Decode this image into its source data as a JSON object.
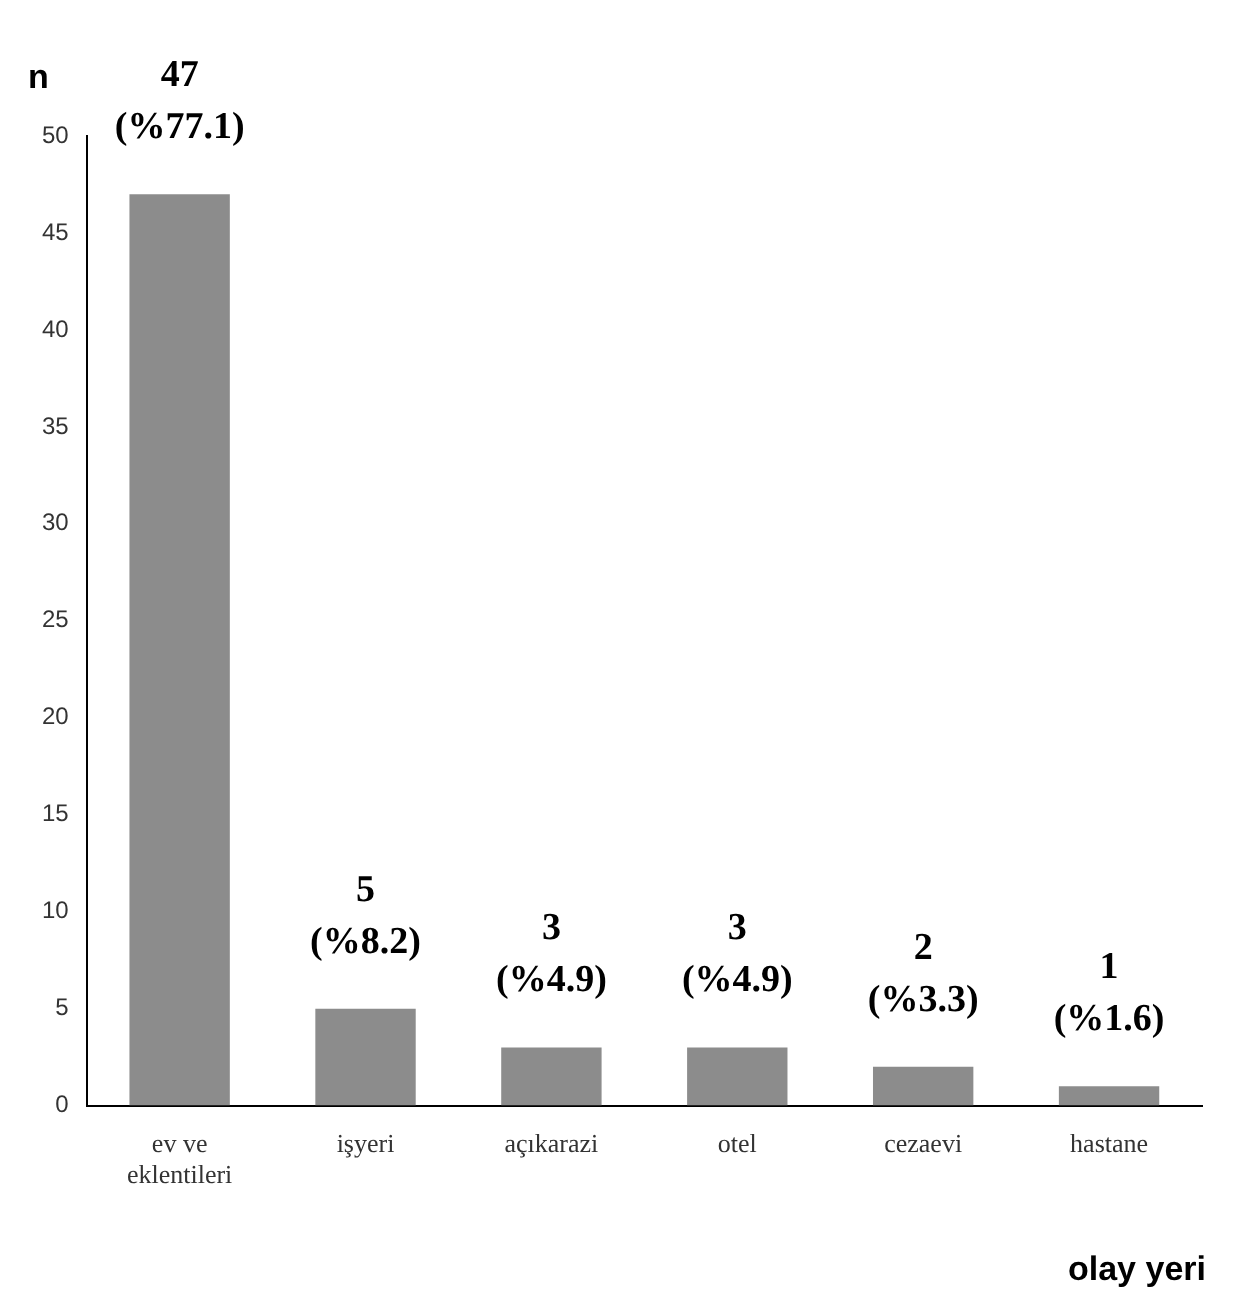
{
  "chart_data": {
    "type": "bar",
    "xlabel": "olay yeri",
    "ylabel": "n",
    "categories": [
      "ev ve eklentileri",
      "işyeri",
      "açıkarazi",
      "otel",
      "cezaevi",
      "hastane"
    ],
    "values": [
      47,
      5,
      3,
      3,
      2,
      1
    ],
    "value_labels": [
      "47\n(%77.1)",
      "5\n(%8.2)",
      "3\n(%4.9)",
      "3\n(%4.9)",
      "2\n(%3.3)",
      "1\n(%1.6)"
    ],
    "color": "#8c8c8c",
    "ylim": [
      0,
      50
    ],
    "yticks": [
      0,
      5,
      10,
      15,
      20,
      25,
      30,
      35,
      40,
      45,
      50
    ],
    "grid": false,
    "legend": false
  }
}
